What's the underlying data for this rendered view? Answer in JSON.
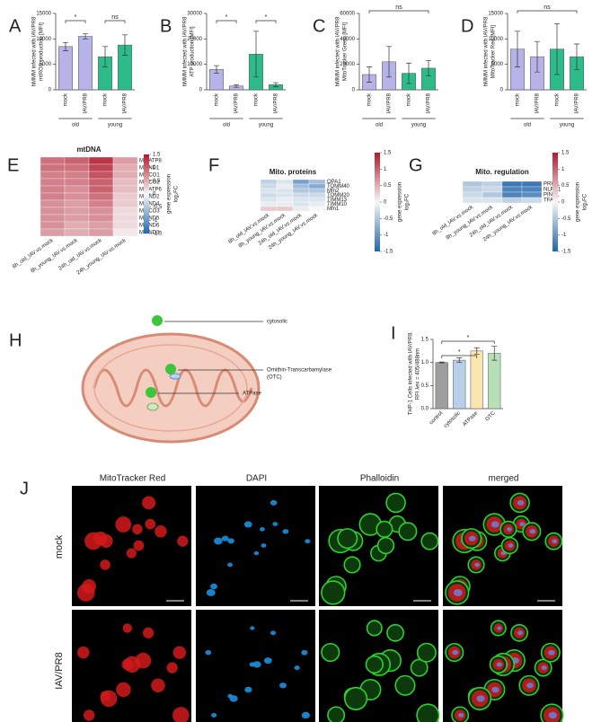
{
  "chart_data": [
    {
      "type": "bar",
      "letter": "A",
      "ylabel": [
        "hMMM infected with IAV/PR8",
        "mtROS production [MFI]"
      ],
      "categories": [
        "mock",
        "IAV/PR8",
        "mock",
        "IAV/PR8"
      ],
      "groups": [
        "old",
        "young"
      ],
      "values": [
        8500,
        10500,
        6500,
        8800
      ],
      "errors": [
        800,
        500,
        2000,
        2000
      ],
      "colors": [
        "#b7b3e8",
        "#b7b3e8",
        "#2dbb8a",
        "#2dbb8a"
      ],
      "ylim": [
        0,
        15000
      ],
      "yticks": [
        0,
        5000,
        10000,
        15000
      ],
      "significance": [
        "*",
        "ns"
      ]
    },
    {
      "type": "bar",
      "letter": "B",
      "ylabel": [
        "hMMM infected with IAV/PR8",
        "ATP production [MFI]"
      ],
      "categories": [
        "mock",
        "IAV/PR8",
        "mock",
        "IAV/PR8"
      ],
      "groups": [
        "old",
        "young"
      ],
      "values": [
        8000,
        1500,
        14000,
        2000
      ],
      "errors": [
        1500,
        500,
        9000,
        800
      ],
      "colors": [
        "#b7b3e8",
        "#b7b3e8",
        "#2dbb8a",
        "#2dbb8a"
      ],
      "ylim": [
        0,
        30000
      ],
      "yticks": [
        0,
        10000,
        20000,
        30000
      ],
      "significance": [
        "*",
        "*"
      ]
    },
    {
      "type": "bar",
      "letter": "C",
      "ylabel": [
        "hMMM infected with IAV/PR8",
        "MitoTracker Green [MFI]"
      ],
      "categories": [
        "mock",
        "IAV/PR8",
        "mock",
        "IAV/PR8"
      ],
      "groups": [
        "old",
        "young"
      ],
      "values": [
        12000,
        22000,
        13000,
        17000
      ],
      "errors": [
        6000,
        12000,
        8000,
        6000
      ],
      "colors": [
        "#b7b3e8",
        "#b7b3e8",
        "#2dbb8a",
        "#2dbb8a"
      ],
      "ylim": [
        0,
        60000
      ],
      "yticks": [
        0,
        20000,
        40000,
        60000
      ],
      "significance": [
        "ns"
      ]
    },
    {
      "type": "bar",
      "letter": "D",
      "ylabel": [
        "hMMM infected with IAV/PR8",
        "MitoTracker Red [MFI]"
      ],
      "categories": [
        "mock",
        "IAV/PR8",
        "mock",
        "IAV/PR8"
      ],
      "groups": [
        "old",
        "young"
      ],
      "values": [
        8000,
        6500,
        8000,
        6500
      ],
      "errors": [
        3500,
        3000,
        5000,
        2500
      ],
      "colors": [
        "#b7b3e8",
        "#b7b3e8",
        "#2dbb8a",
        "#2dbb8a"
      ],
      "ylim": [
        0,
        15000
      ],
      "yticks": [
        0,
        5000,
        10000,
        15000
      ],
      "significance": [
        "ns"
      ]
    },
    {
      "type": "heatmap",
      "letter": "E",
      "title": "mtDNA",
      "rows": [
        "MT-ATP8",
        "MT-ND1",
        "MT-CO1",
        "MT-CO2",
        "MT-ATP6",
        "MT-ND2",
        "MT-ND4",
        "MT-CO3",
        "MT-ND5",
        "MT-ND6",
        "MT-ND3"
      ],
      "columns": [
        "8h_old_IAV.vs.mock",
        "8h_young_IAV.vs.mock",
        "24h_old_IAV.vs.mock",
        "24h_young_IAV.vs.mock"
      ],
      "values": [
        [
          0.9,
          1.0,
          1.3,
          0.6
        ],
        [
          0.9,
          0.9,
          1.2,
          0.5
        ],
        [
          0.8,
          0.8,
          1.1,
          0.5
        ],
        [
          0.8,
          0.8,
          1.0,
          0.4
        ],
        [
          0.8,
          0.7,
          1.0,
          0.4
        ],
        [
          0.8,
          0.7,
          0.9,
          0.3
        ],
        [
          0.7,
          0.6,
          0.8,
          0.3
        ],
        [
          0.7,
          0.6,
          0.7,
          0.2
        ],
        [
          0.7,
          0.6,
          0.7,
          0.2
        ],
        [
          0.7,
          0.5,
          0.6,
          0.2
        ],
        [
          0.6,
          0.5,
          0.6,
          0.1
        ]
      ],
      "zlim": [
        -1.5,
        1.5
      ],
      "colorbar_ticks": [
        1.5,
        1,
        0.5,
        0,
        -0.5,
        -1,
        -1.5
      ],
      "colorbar_label": [
        "gene expression",
        "log₂FC"
      ]
    },
    {
      "type": "heatmap",
      "letter": "F",
      "title": "Mito. proteins",
      "rows": [
        "OPA1",
        "TOMM40",
        "Mfn2",
        "TOMM20",
        "TIMM13",
        "TIMM10",
        "Mfn1"
      ],
      "columns": [
        "8h_old_IAV.vs.mock",
        "8h_young_IAV.vs.mock",
        "24h_old_IAV.vs.mock",
        "24h_young_IAV.vs.mock"
      ],
      "values": [
        [
          -0.4,
          -0.2,
          -0.9,
          -0.6
        ],
        [
          -0.3,
          -0.1,
          -0.6,
          -0.8
        ],
        [
          -0.2,
          -0.2,
          -0.5,
          -0.5
        ],
        [
          -0.3,
          -0.2,
          -0.3,
          -0.3
        ],
        [
          -0.2,
          -0.1,
          -0.2,
          -0.2
        ],
        [
          -0.1,
          -0.1,
          -0.2,
          -0.1
        ],
        [
          0.3,
          0.3,
          -0.1,
          0
        ]
      ],
      "zlim": [
        -1.5,
        1.5
      ],
      "colorbar_ticks": [
        1.5,
        1,
        0.5,
        0,
        -0.5,
        -1,
        -1.5
      ],
      "colorbar_label": [
        "gene expression",
        "log₂FC"
      ]
    },
    {
      "type": "heatmap",
      "letter": "G",
      "title": "Mito. regulation",
      "rows": [
        "PRKN",
        "NLRX1",
        "PINK1",
        "TFAM"
      ],
      "columns": [
        "8h_old_IAV.vs.mock",
        "8h_young_IAV.vs.mock",
        "24h_old_IAV.vs.mock",
        "24h_young_IAV.vs.mock"
      ],
      "values": [
        [
          -0.5,
          -0.4,
          -1.3,
          -1.3
        ],
        [
          -0.4,
          -0.3,
          -1.2,
          -1.2
        ],
        [
          -0.3,
          -0.5,
          -1.2,
          -1.1
        ],
        [
          -0.2,
          -0.2,
          -0.4,
          -0.3
        ]
      ],
      "zlim": [
        -1.5,
        1.5
      ],
      "colorbar_ticks": [
        1.5,
        1,
        0.5,
        0,
        -0.5,
        -1,
        -1.5
      ],
      "colorbar_label": [
        "gene expression",
        "log₂FC"
      ]
    },
    {
      "type": "bar",
      "letter": "I",
      "ylabel": [
        "THP-1 Cells infected with IAV/PR8",
        "RFI λex = 405/488nm"
      ],
      "categories": [
        "control",
        "cytosolic",
        "ATPase",
        "OTC"
      ],
      "values": [
        1.0,
        1.05,
        1.25,
        1.2
      ],
      "errors": [
        0.01,
        0.05,
        0.07,
        0.15
      ],
      "colors": [
        "#9e9e9e",
        "#b9cfe8",
        "#fbe6b0",
        "#b8e0b8"
      ],
      "ylim": [
        0,
        1.5
      ],
      "yticks": [
        {
          "value": 0,
          "label": "0.0"
        },
        0.5,
        {
          "value": 1,
          "label": "1.0"
        },
        1.5
      ],
      "significance": [
        "*",
        "*"
      ]
    }
  ],
  "diagram_h": {
    "letter": "H",
    "labels": [
      "cytosolic",
      [
        "Ornithin-Transcarbamylase",
        "(OTC)"
      ],
      "ATPase"
    ]
  },
  "micrographs_j": {
    "letter": "J",
    "columns": [
      "MitoTracker Red",
      "DAPI",
      "Phalloidin",
      "merged"
    ],
    "rows": [
      "mock",
      "IAV/PR8"
    ]
  }
}
